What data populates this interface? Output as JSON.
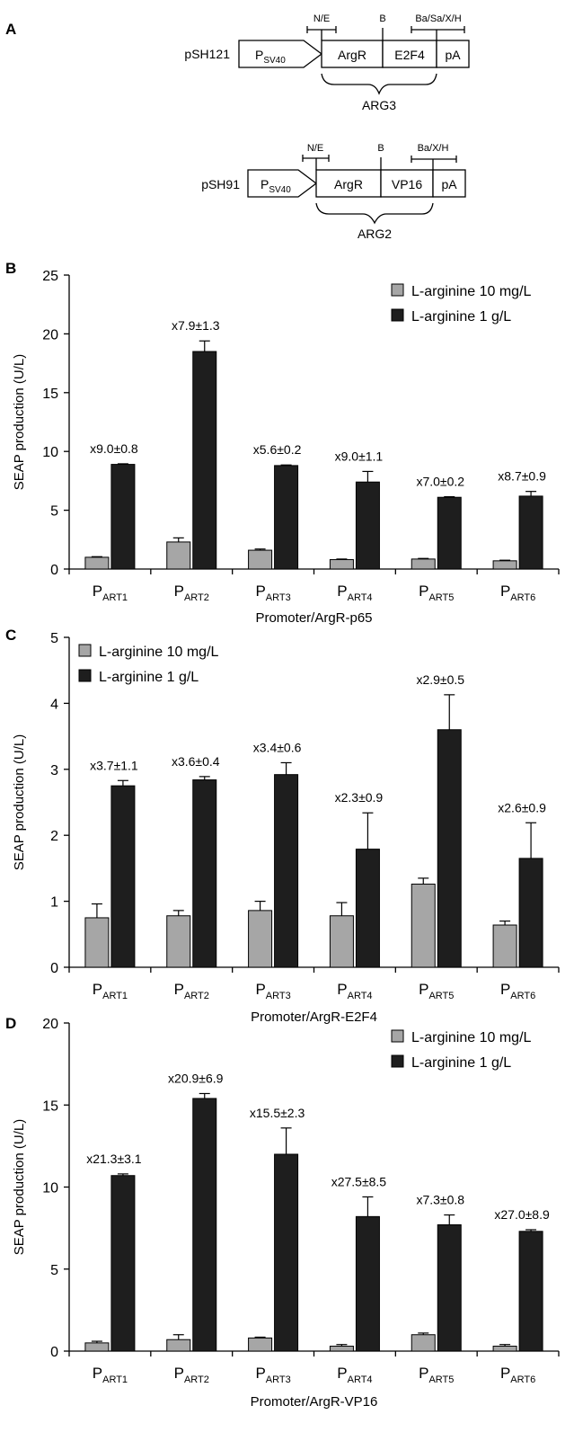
{
  "panel_a": {
    "label": "A",
    "constructs": [
      {
        "name": "pSH121",
        "promoter": "P",
        "promoter_sub": "SV40",
        "parts": [
          "ArgR",
          "E2F4",
          "pA"
        ],
        "sites": [
          "N/E",
          "B",
          "Ba/Sa/X/H"
        ],
        "fusion": "ARG3"
      },
      {
        "name": "pSH91",
        "promoter": "P",
        "promoter_sub": "SV40",
        "parts": [
          "ArgR",
          "VP16",
          "pA"
        ],
        "sites": [
          "N/E",
          "B",
          "Ba/X/H"
        ],
        "fusion": "ARG2"
      }
    ]
  },
  "colors": {
    "low": "#a6a6a6",
    "high": "#1e1e1e"
  },
  "chart_data": [
    {
      "panel": "B",
      "type": "bar",
      "xlabel": "Promoter/ArgR-p65",
      "ylabel": "SEAP production (U/L)",
      "ylim": [
        0,
        25
      ],
      "yticks": [
        0,
        5,
        10,
        15,
        20,
        25
      ],
      "legend": "top-right",
      "categories": [
        {
          "main": "P",
          "sub": "ART1"
        },
        {
          "main": "P",
          "sub": "ART2"
        },
        {
          "main": "P",
          "sub": "ART3"
        },
        {
          "main": "P",
          "sub": "ART4"
        },
        {
          "main": "P",
          "sub": "ART5"
        },
        {
          "main": "P",
          "sub": "ART6"
        }
      ],
      "series": [
        {
          "name": "L-arginine 10 mg/L",
          "values": [
            1.0,
            2.3,
            1.6,
            0.8,
            0.85,
            0.7
          ],
          "errors": [
            0.05,
            0.35,
            0.1,
            0.05,
            0.05,
            0.05
          ]
        },
        {
          "name": "L-arginine 1 g/L",
          "values": [
            8.9,
            18.5,
            8.8,
            7.4,
            6.1,
            6.2
          ],
          "errors": [
            0.05,
            0.9,
            0.05,
            0.9,
            0.05,
            0.4
          ]
        }
      ],
      "annotations": [
        "x9.0±0.8",
        "x7.9±1.3",
        "x5.6±0.2",
        "x9.0±1.1",
        "x7.0±0.2",
        "x8.7±0.9"
      ]
    },
    {
      "panel": "C",
      "type": "bar",
      "xlabel": "Promoter/ArgR-E2F4",
      "ylabel": "SEAP production (U/L)",
      "ylim": [
        0,
        5
      ],
      "yticks": [
        0,
        1,
        2,
        3,
        4,
        5
      ],
      "legend": "top-left",
      "categories": [
        {
          "main": "P",
          "sub": "ART1"
        },
        {
          "main": "P",
          "sub": "ART2"
        },
        {
          "main": "P",
          "sub": "ART3"
        },
        {
          "main": "P",
          "sub": "ART4"
        },
        {
          "main": "P",
          "sub": "ART5"
        },
        {
          "main": "P",
          "sub": "ART6"
        }
      ],
      "series": [
        {
          "name": "L-arginine 10 mg/L",
          "values": [
            0.75,
            0.78,
            0.86,
            0.78,
            1.26,
            0.64
          ],
          "errors": [
            0.21,
            0.08,
            0.14,
            0.2,
            0.09,
            0.06
          ]
        },
        {
          "name": "L-arginine 1 g/L",
          "values": [
            2.75,
            2.84,
            2.92,
            1.79,
            3.6,
            1.65
          ],
          "errors": [
            0.08,
            0.05,
            0.18,
            0.55,
            0.53,
            0.54
          ]
        }
      ],
      "annotations": [
        "x3.7±1.1",
        "x3.6±0.4",
        "x3.4±0.6",
        "x2.3±0.9",
        "x2.9±0.5",
        "x2.6±0.9"
      ]
    },
    {
      "panel": "D",
      "type": "bar",
      "xlabel": "Promoter/ArgR-VP16",
      "ylabel": "SEAP production (U/L)",
      "ylim": [
        0,
        20
      ],
      "yticks": [
        0,
        5,
        10,
        15,
        20
      ],
      "legend": "top-right",
      "categories": [
        {
          "main": "P",
          "sub": "ART1"
        },
        {
          "main": "P",
          "sub": "ART2"
        },
        {
          "main": "P",
          "sub": "ART3"
        },
        {
          "main": "P",
          "sub": "ART4"
        },
        {
          "main": "P",
          "sub": "ART5"
        },
        {
          "main": "P",
          "sub": "ART6"
        }
      ],
      "series": [
        {
          "name": "L-arginine 10 mg/L",
          "values": [
            0.5,
            0.7,
            0.8,
            0.3,
            1.0,
            0.3
          ],
          "errors": [
            0.1,
            0.3,
            0.05,
            0.1,
            0.1,
            0.1
          ]
        },
        {
          "name": "L-arginine 1 g/L",
          "values": [
            10.7,
            15.4,
            12.0,
            8.2,
            7.7,
            7.3
          ],
          "errors": [
            0.1,
            0.3,
            1.6,
            1.2,
            0.6,
            0.1
          ]
        }
      ],
      "annotations": [
        "x21.3±3.1",
        "x20.9±6.9",
        "x15.5±2.3",
        "x27.5±8.5",
        "x7.3±0.8",
        "x27.0±8.9"
      ]
    }
  ]
}
